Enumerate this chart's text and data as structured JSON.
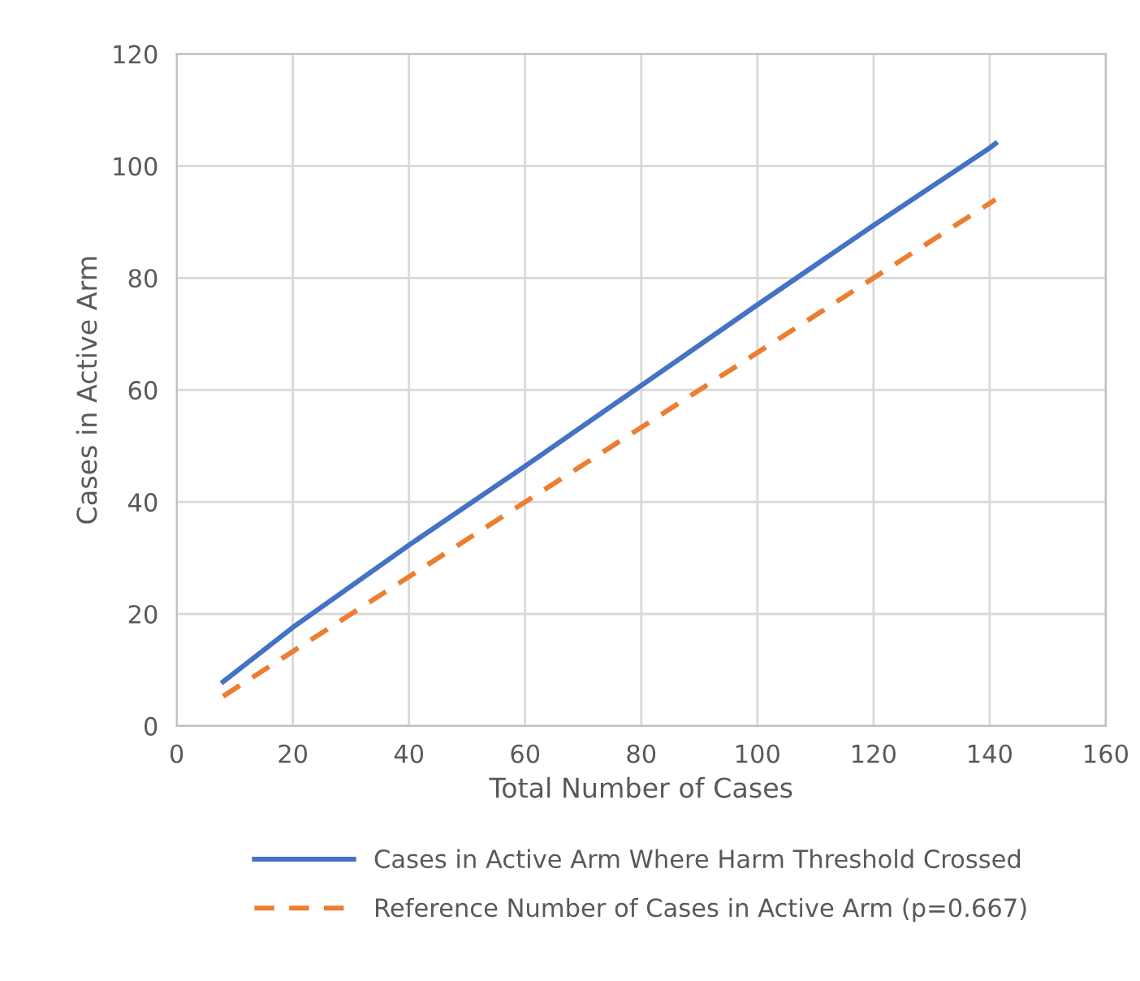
{
  "chart_data": {
    "type": "line",
    "xlabel": "Total Number of Cases",
    "ylabel": "Cases in Active Arm",
    "series": [
      {
        "name": "Cases in Active Arm Where Harm Threshold Crossed",
        "color": "#4472c4",
        "line_style": "solid",
        "x": [
          8,
          20,
          40,
          60,
          80,
          100,
          120,
          140,
          141
        ],
        "values": [
          7.9,
          17.6,
          32.3,
          46.4,
          60.8,
          75.2,
          89.4,
          103.2,
          104
        ]
      },
      {
        "name": "Reference Number of Cases in Active Arm (p=0.667)",
        "color": "#ed7d31",
        "line_style": "dashed",
        "x": [
          8,
          141
        ],
        "values": [
          5.3,
          94.0
        ]
      }
    ],
    "xlim": [
      0,
      160
    ],
    "xticks": [
      0,
      20,
      40,
      60,
      80,
      100,
      120,
      140,
      160
    ],
    "ylim": [
      0,
      120
    ],
    "yticks": [
      0,
      20,
      40,
      60,
      80,
      100,
      120
    ],
    "grid": true,
    "legend": "bottom",
    "marker": "none"
  }
}
